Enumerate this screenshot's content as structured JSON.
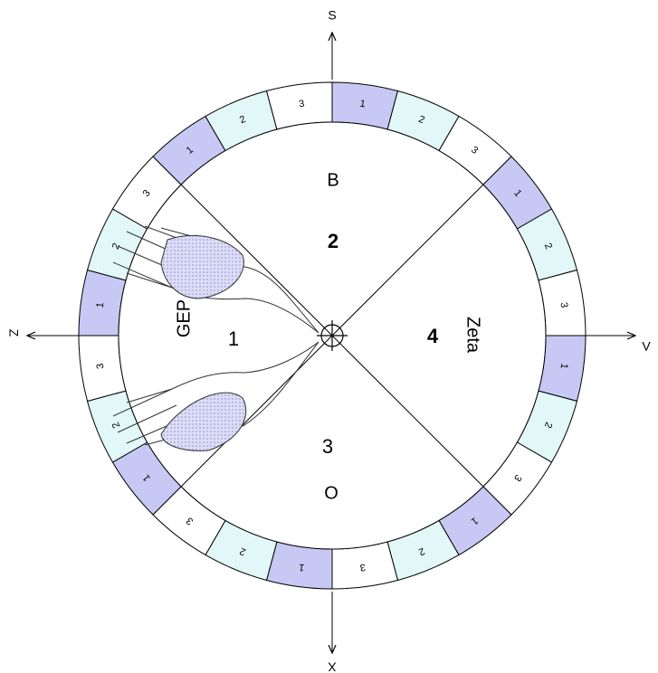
{
  "compass": {
    "north": "S",
    "east": "V",
    "south": "X",
    "west": "Z"
  },
  "ring": {
    "labels": [
      "1",
      "2",
      "3",
      "1",
      "2",
      "3",
      "1",
      "2",
      "3",
      "1",
      "2",
      "3",
      "1",
      "2",
      "3",
      "1",
      "2",
      "3",
      "1",
      "2",
      "3",
      "1",
      "2",
      "3"
    ]
  },
  "sectors": {
    "top": {
      "number": "2",
      "name": "B"
    },
    "right": {
      "number": "4",
      "name": "Zeta"
    },
    "bottom": {
      "number": "3",
      "name": "O"
    },
    "left": {
      "number": "1",
      "name": "GEP"
    }
  }
}
